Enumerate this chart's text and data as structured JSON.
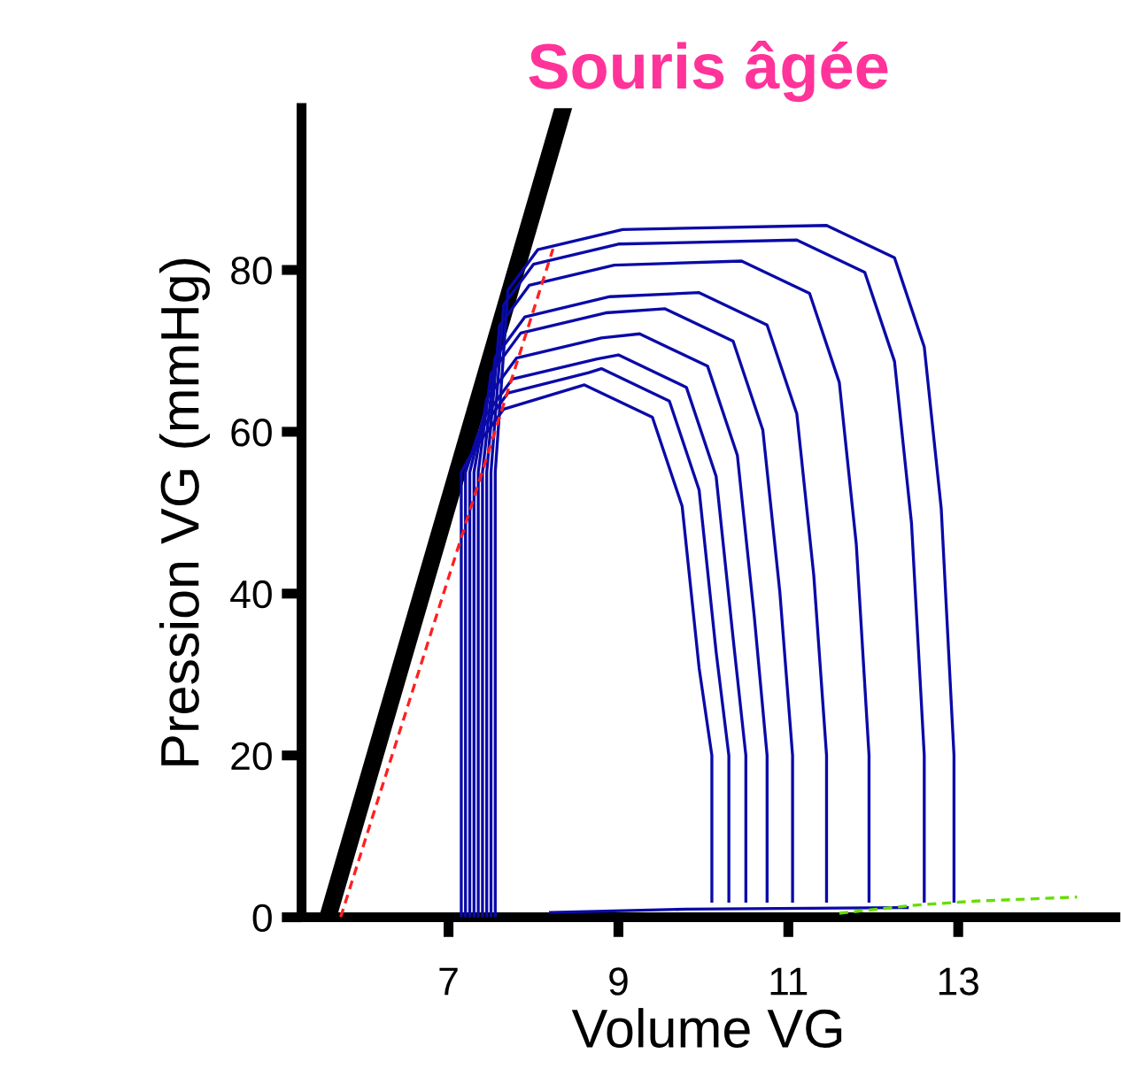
{
  "chart_data": {
    "type": "line",
    "title": "Souris âgée",
    "xlabel": "Volume VG",
    "ylabel": "Pression VG (mmHg)",
    "xlim": [
      5.27,
      14.85
    ],
    "ylim": [
      0,
      100
    ],
    "xticks": [
      7,
      9,
      11,
      13
    ],
    "yticks": [
      0,
      20,
      40,
      60,
      80
    ],
    "grid": false,
    "legend": false,
    "series": [
      {
        "color": "#0a0aa8",
        "x": [
          7.55,
          7.55,
          7.7,
          8.05,
          9.05,
          11.45,
          12.25,
          12.6,
          12.8,
          12.95,
          12.95,
          12.95
        ],
        "values": [
          0,
          55,
          77.5,
          82.5,
          85,
          85.5,
          81.5,
          70.5,
          50.5,
          20,
          8,
          2
        ]
      },
      {
        "color": "#0a0aa8",
        "x": [
          7.5,
          7.5,
          7.65,
          8.0,
          9.0,
          11.1,
          11.9,
          12.25,
          12.45,
          12.6,
          12.6,
          12.6
        ],
        "values": [
          0,
          55,
          75.7,
          80.7,
          83.2,
          83.7,
          79.7,
          68.7,
          48.7,
          20,
          8,
          2
        ]
      },
      {
        "color": "#0a0aa8",
        "x": [
          7.45,
          7.45,
          7.6,
          7.95,
          8.95,
          10.45,
          11.25,
          11.6,
          11.8,
          11.95,
          11.95,
          11.95
        ],
        "values": [
          0,
          55,
          73.1,
          78.1,
          80.6,
          81.1,
          77.1,
          66.1,
          46.1,
          20,
          8,
          2
        ]
      },
      {
        "color": "#0a0aa8",
        "x": [
          7.4,
          7.4,
          7.55,
          7.9,
          8.9,
          9.95,
          10.75,
          11.1,
          11.3,
          11.45,
          11.45,
          11.45
        ],
        "values": [
          0,
          55,
          69.2,
          74.2,
          76.7,
          77.2,
          73.2,
          62.2,
          42.2,
          20,
          8,
          2
        ]
      },
      {
        "color": "#0a0aa8",
        "x": [
          7.35,
          7.35,
          7.5,
          7.85,
          8.85,
          9.55,
          10.35,
          10.7,
          10.9,
          11.05,
          11.05,
          11.05
        ],
        "values": [
          0,
          55,
          67.2,
          72.2,
          74.7,
          75.2,
          71.2,
          60.2,
          40.2,
          20,
          8,
          2
        ]
      },
      {
        "color": "#0a0aa8",
        "x": [
          7.3,
          7.3,
          7.45,
          7.8,
          8.8,
          9.25,
          10.05,
          10.4,
          10.6,
          10.75,
          10.75,
          10.75
        ],
        "values": [
          0,
          55,
          64.1,
          69.1,
          71.6,
          72.1,
          68.1,
          57.1,
          37.1,
          20,
          8,
          2
        ]
      },
      {
        "color": "#0a0aa8",
        "x": [
          7.25,
          7.25,
          7.4,
          7.75,
          8.75,
          9.0,
          9.8,
          10.15,
          10.35,
          10.5,
          10.5,
          10.5
        ],
        "values": [
          0,
          55,
          61.5,
          66.5,
          69,
          69.5,
          65.5,
          54.5,
          34.5,
          20,
          8,
          2
        ]
      },
      {
        "color": "#0a0aa8",
        "x": [
          7.2,
          7.2,
          7.35,
          7.7,
          8.65,
          8.8,
          9.6,
          9.95,
          10.15,
          10.3,
          10.3,
          10.3
        ],
        "values": [
          0,
          55,
          59.8,
          64.8,
          67.3,
          67.8,
          63.8,
          52.8,
          32.8,
          20,
          8,
          2
        ]
      },
      {
        "color": "#0a0aa8",
        "x": [
          7.15,
          7.15,
          7.3,
          7.65,
          8.6,
          9.4,
          9.75,
          9.95,
          10.1,
          10.1,
          10.1
        ],
        "values": [
          0,
          55,
          57.8,
          62.8,
          65.8,
          61.8,
          50.8,
          30.8,
          20,
          8,
          2
        ]
      },
      {
        "color": "#0a0aa8",
        "x": [
          8.2,
          9.8,
          12.4
        ],
        "values": [
          0.6,
          1,
          1.2
        ]
      },
      {
        "color": "#ff2020",
        "line_style": "dashed",
        "x": [
          5.73,
          8.23
        ],
        "values": [
          0,
          82.6
        ]
      },
      {
        "color": "#000000",
        "x": [
          5.58,
          8.35
        ],
        "values": [
          0,
          100
        ]
      },
      {
        "color": "#66dd00",
        "line_style": "dashed",
        "x": [
          11.6,
          12.5,
          13.2,
          14.4
        ],
        "values": [
          0.5,
          1.5,
          2,
          2.5
        ]
      }
    ]
  }
}
